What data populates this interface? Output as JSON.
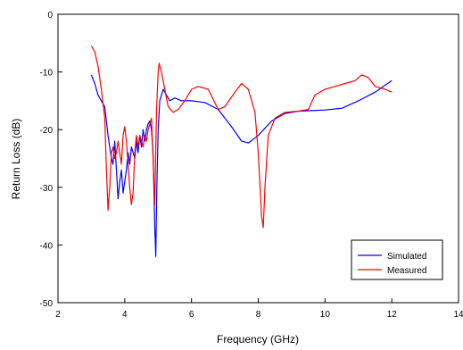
{
  "chart_data": {
    "type": "line",
    "title": "",
    "xlabel": "Frequency (GHz)",
    "ylabel": "Return Loss (dB)",
    "xlim": [
      2,
      14
    ],
    "ylim": [
      -50,
      0
    ],
    "xticks": [
      2,
      4,
      6,
      8,
      10,
      12,
      14
    ],
    "yticks": [
      0,
      -10,
      -20,
      -30,
      -40,
      -50
    ],
    "grid": false,
    "legend_position": "bottom-right",
    "series": [
      {
        "name": "Simulated",
        "color": "#0000ff",
        "points": [
          [
            3.0,
            -10.5
          ],
          [
            3.1,
            -12
          ],
          [
            3.2,
            -14
          ],
          [
            3.3,
            -15
          ],
          [
            3.4,
            -16
          ],
          [
            3.5,
            -21
          ],
          [
            3.55,
            -23
          ],
          [
            3.6,
            -25
          ],
          [
            3.65,
            -26
          ],
          [
            3.7,
            -22
          ],
          [
            3.75,
            -27
          ],
          [
            3.8,
            -32
          ],
          [
            3.85,
            -29
          ],
          [
            3.9,
            -27
          ],
          [
            3.95,
            -31
          ],
          [
            4.0,
            -29
          ],
          [
            4.05,
            -27
          ],
          [
            4.1,
            -24
          ],
          [
            4.15,
            -26
          ],
          [
            4.2,
            -23
          ],
          [
            4.3,
            -25
          ],
          [
            4.35,
            -22
          ],
          [
            4.4,
            -24
          ],
          [
            4.45,
            -21
          ],
          [
            4.5,
            -23
          ],
          [
            4.55,
            -20
          ],
          [
            4.6,
            -22
          ],
          [
            4.65,
            -20
          ],
          [
            4.7,
            -19
          ],
          [
            4.75,
            -18.5
          ],
          [
            4.8,
            -20
          ],
          [
            4.85,
            -24
          ],
          [
            4.9,
            -37
          ],
          [
            4.93,
            -42
          ],
          [
            4.96,
            -30
          ],
          [
            5.0,
            -20
          ],
          [
            5.05,
            -15
          ],
          [
            5.15,
            -13
          ],
          [
            5.25,
            -14
          ],
          [
            5.35,
            -15
          ],
          [
            5.5,
            -14.5
          ],
          [
            5.7,
            -15
          ],
          [
            6.0,
            -15
          ],
          [
            6.4,
            -15.3
          ],
          [
            6.8,
            -16.5
          ],
          [
            7.2,
            -19.5
          ],
          [
            7.5,
            -22
          ],
          [
            7.7,
            -22.3
          ],
          [
            8.0,
            -21
          ],
          [
            8.4,
            -18.5
          ],
          [
            8.8,
            -17.2
          ],
          [
            9.2,
            -16.8
          ],
          [
            9.6,
            -16.7
          ],
          [
            10.0,
            -16.6
          ],
          [
            10.5,
            -16.3
          ],
          [
            11.0,
            -15
          ],
          [
            11.5,
            -13.5
          ],
          [
            12.0,
            -11.5
          ]
        ]
      },
      {
        "name": "Measured",
        "color": "#ff0000",
        "points": [
          [
            3.0,
            -5.5
          ],
          [
            3.1,
            -6.5
          ],
          [
            3.2,
            -9
          ],
          [
            3.3,
            -13
          ],
          [
            3.4,
            -18
          ],
          [
            3.45,
            -27
          ],
          [
            3.5,
            -34
          ],
          [
            3.55,
            -30
          ],
          [
            3.6,
            -24
          ],
          [
            3.65,
            -23
          ],
          [
            3.7,
            -25
          ],
          [
            3.75,
            -24
          ],
          [
            3.8,
            -22
          ],
          [
            3.85,
            -24
          ],
          [
            3.9,
            -26
          ],
          [
            3.95,
            -21
          ],
          [
            4.0,
            -19.5
          ],
          [
            4.05,
            -22
          ],
          [
            4.1,
            -26
          ],
          [
            4.15,
            -30
          ],
          [
            4.2,
            -33
          ],
          [
            4.25,
            -31
          ],
          [
            4.3,
            -24
          ],
          [
            4.35,
            -21
          ],
          [
            4.4,
            -23
          ],
          [
            4.45,
            -21
          ],
          [
            4.5,
            -22
          ],
          [
            4.55,
            -23
          ],
          [
            4.6,
            -21
          ],
          [
            4.65,
            -22
          ],
          [
            4.7,
            -20
          ],
          [
            4.75,
            -19
          ],
          [
            4.8,
            -18
          ],
          [
            4.85,
            -25
          ],
          [
            4.9,
            -33
          ],
          [
            4.95,
            -17
          ],
          [
            5.0,
            -10
          ],
          [
            5.03,
            -8.5
          ],
          [
            5.1,
            -10
          ],
          [
            5.2,
            -13
          ],
          [
            5.3,
            -16
          ],
          [
            5.45,
            -17
          ],
          [
            5.6,
            -16.5
          ],
          [
            5.8,
            -15
          ],
          [
            6.0,
            -13
          ],
          [
            6.2,
            -12.5
          ],
          [
            6.5,
            -13
          ],
          [
            6.8,
            -16.5
          ],
          [
            7.0,
            -16
          ],
          [
            7.3,
            -13.5
          ],
          [
            7.5,
            -12
          ],
          [
            7.7,
            -13
          ],
          [
            7.9,
            -17
          ],
          [
            8.0,
            -24
          ],
          [
            8.1,
            -35
          ],
          [
            8.15,
            -37
          ],
          [
            8.2,
            -30
          ],
          [
            8.3,
            -21
          ],
          [
            8.5,
            -18
          ],
          [
            8.8,
            -17
          ],
          [
            9.2,
            -16.8
          ],
          [
            9.5,
            -16.5
          ],
          [
            9.7,
            -14
          ],
          [
            10.0,
            -13
          ],
          [
            10.3,
            -12.5
          ],
          [
            10.6,
            -12
          ],
          [
            10.9,
            -11.5
          ],
          [
            11.1,
            -10.5
          ],
          [
            11.3,
            -11
          ],
          [
            11.5,
            -12.5
          ],
          [
            11.8,
            -13
          ],
          [
            12.0,
            -13.5
          ]
        ]
      }
    ]
  }
}
